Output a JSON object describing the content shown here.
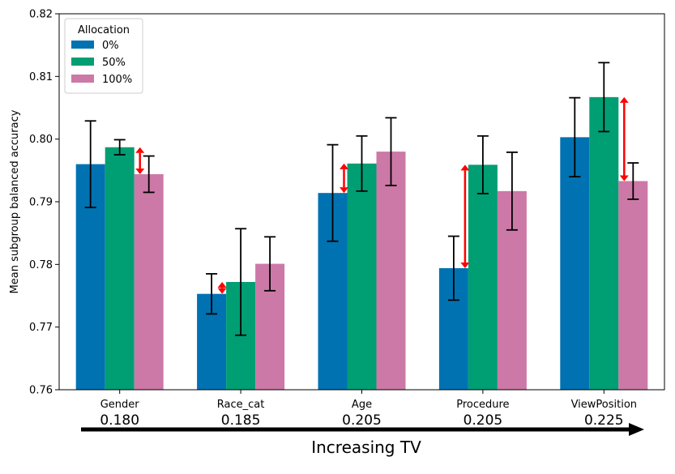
{
  "chart_data": {
    "type": "bar",
    "title": "",
    "xlabel": "",
    "ylabel": "Mean subgroup balanced accuracy",
    "ylim": [
      0.76,
      0.82
    ],
    "yticks": [
      "0.76",
      "0.77",
      "0.78",
      "0.79",
      "0.80",
      "0.81",
      "0.82"
    ],
    "categories": [
      "Gender",
      "Race_cat",
      "Age",
      "Procedure",
      "ViewPosition"
    ],
    "tv_values": [
      "0.180",
      "0.185",
      "0.205",
      "0.205",
      "0.225"
    ],
    "legend": {
      "title": "Allocation",
      "placement": "top-left"
    },
    "series": [
      {
        "name": "0%",
        "color": "#0072b2",
        "values": [
          0.796,
          0.7753,
          0.7914,
          0.7794,
          0.8003
        ],
        "err": [
          0.0069,
          0.0032,
          0.0077,
          0.0051,
          0.0063
        ]
      },
      {
        "name": "50%",
        "color": "#009e73",
        "values": [
          0.7987,
          0.7772,
          0.7961,
          0.7959,
          0.8067
        ],
        "err": [
          0.0012,
          0.0085,
          0.0044,
          0.0046,
          0.0055
        ]
      },
      {
        "name": "100%",
        "color": "#cc79a7",
        "values": [
          0.7944,
          0.7801,
          0.798,
          0.7917,
          0.7933
        ],
        "err": [
          0.0029,
          0.0043,
          0.0054,
          0.0062,
          0.0029
        ]
      }
    ],
    "annotations": [
      {
        "category": "Gender",
        "from": 0.7987,
        "to": 0.7944
      },
      {
        "category": "Race_cat",
        "from": 0.7772,
        "to": 0.7753
      },
      {
        "category": "Age",
        "from": 0.7961,
        "to": 0.7914
      },
      {
        "category": "Procedure",
        "from": 0.7959,
        "to": 0.7794
      },
      {
        "category": "ViewPosition",
        "from": 0.8067,
        "to": 0.7933
      }
    ],
    "arrow_color": "#ff0000",
    "bottom_label": "Increasing TV"
  }
}
